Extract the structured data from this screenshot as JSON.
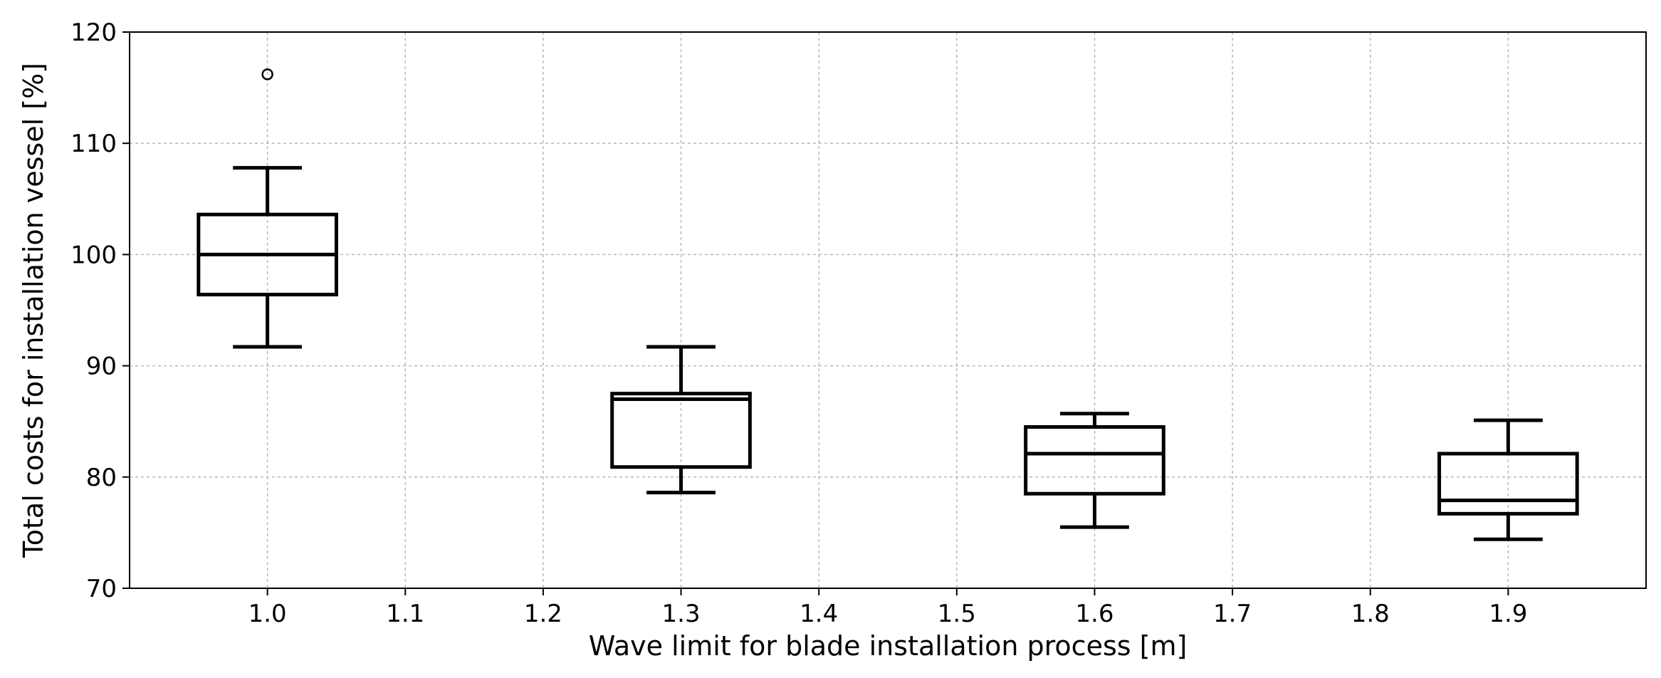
{
  "chart_data": {
    "type": "boxplot",
    "title": "",
    "xlabel": "Wave limit for blade installation process [m]",
    "ylabel": "Total costs for installation vessel [%]",
    "xlim": [
      0.9,
      2.0
    ],
    "ylim": [
      70,
      120
    ],
    "xticks": [
      "1.0",
      "1.1",
      "1.2",
      "1.3",
      "1.4",
      "1.5",
      "1.6",
      "1.7",
      "1.8",
      "1.9"
    ],
    "yticks": [
      "70",
      "80",
      "90",
      "100",
      "110",
      "120"
    ],
    "grid": true,
    "boxes": [
      {
        "x": 1.0,
        "whisker_low": 91.7,
        "q1": 96.4,
        "median": 100.0,
        "q3": 103.6,
        "whisker_high": 107.8,
        "outliers": [
          116.2
        ]
      },
      {
        "x": 1.3,
        "whisker_low": 78.6,
        "q1": 80.9,
        "median": 87.0,
        "q3": 87.5,
        "whisker_high": 91.7,
        "outliers": []
      },
      {
        "x": 1.6,
        "whisker_low": 75.5,
        "q1": 78.5,
        "median": 82.1,
        "q3": 84.5,
        "whisker_high": 85.7,
        "outliers": []
      },
      {
        "x": 1.9,
        "whisker_low": 74.4,
        "q1": 76.7,
        "median": 77.9,
        "q3": 82.1,
        "whisker_high": 85.1,
        "outliers": []
      }
    ],
    "colors": {
      "box": "#000000",
      "grid": "#b8b8b8",
      "axis": "#000000"
    }
  }
}
